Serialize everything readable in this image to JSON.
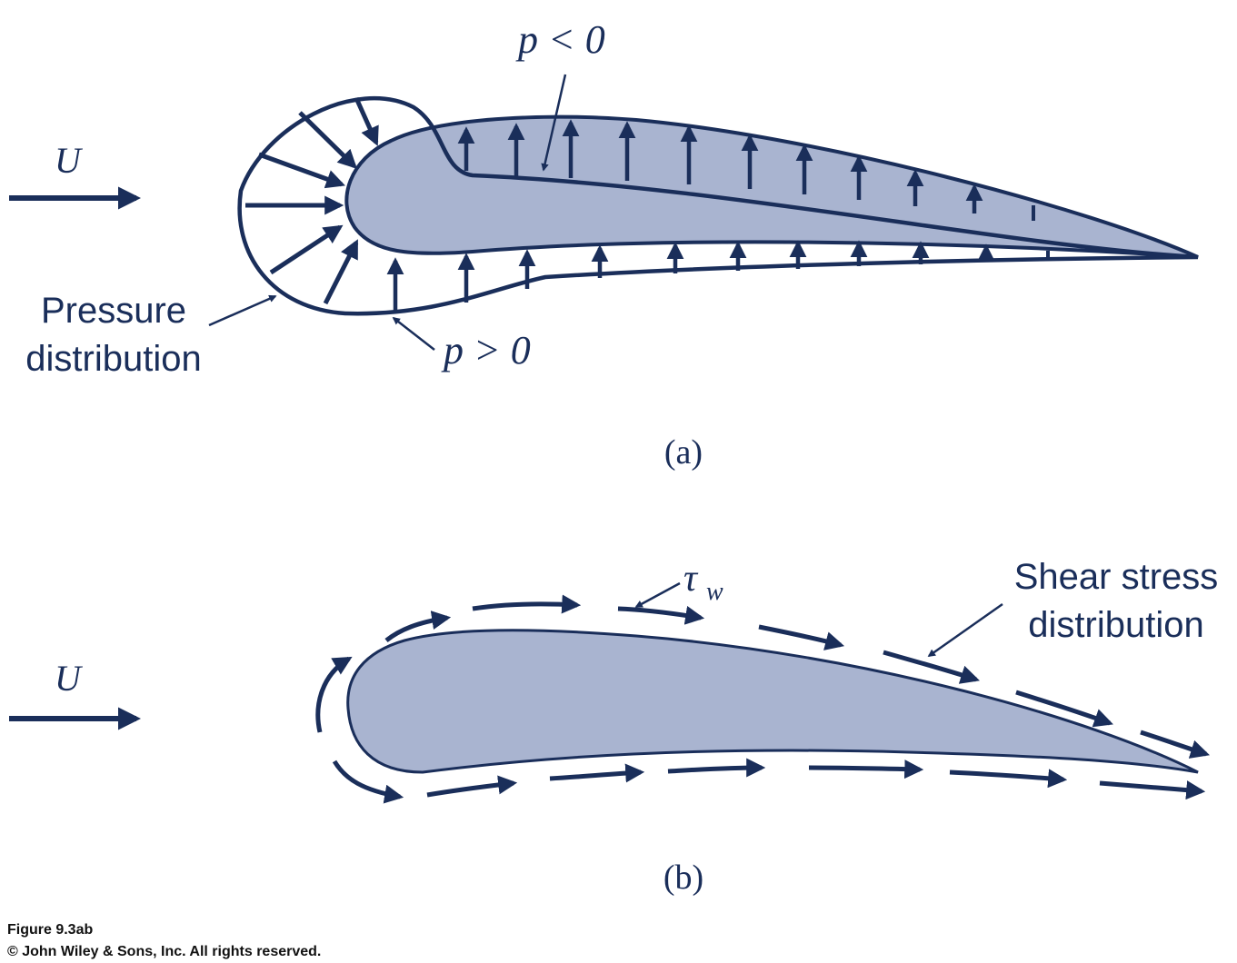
{
  "panel_a": {
    "flow_label": "U",
    "upper_label": "p < 0",
    "lower_label": "p > 0",
    "pressure_label_line1": "Pressure",
    "pressure_label_line2": "distribution",
    "panel_label": "(a)"
  },
  "panel_b": {
    "flow_label": "U",
    "shear_symbol": "τ",
    "shear_subscript": "w",
    "shear_label_line1": "Shear stress",
    "shear_label_line2": "distribution",
    "panel_label": "(b)"
  },
  "caption": {
    "figure_id": "Figure 9.3ab",
    "copyright": "© John Wiley & Sons, Inc. All rights reserved."
  },
  "colors": {
    "stroke": "#1a2e5a",
    "airfoil_fill": "#a9b4d0",
    "background": "#ffffff"
  }
}
